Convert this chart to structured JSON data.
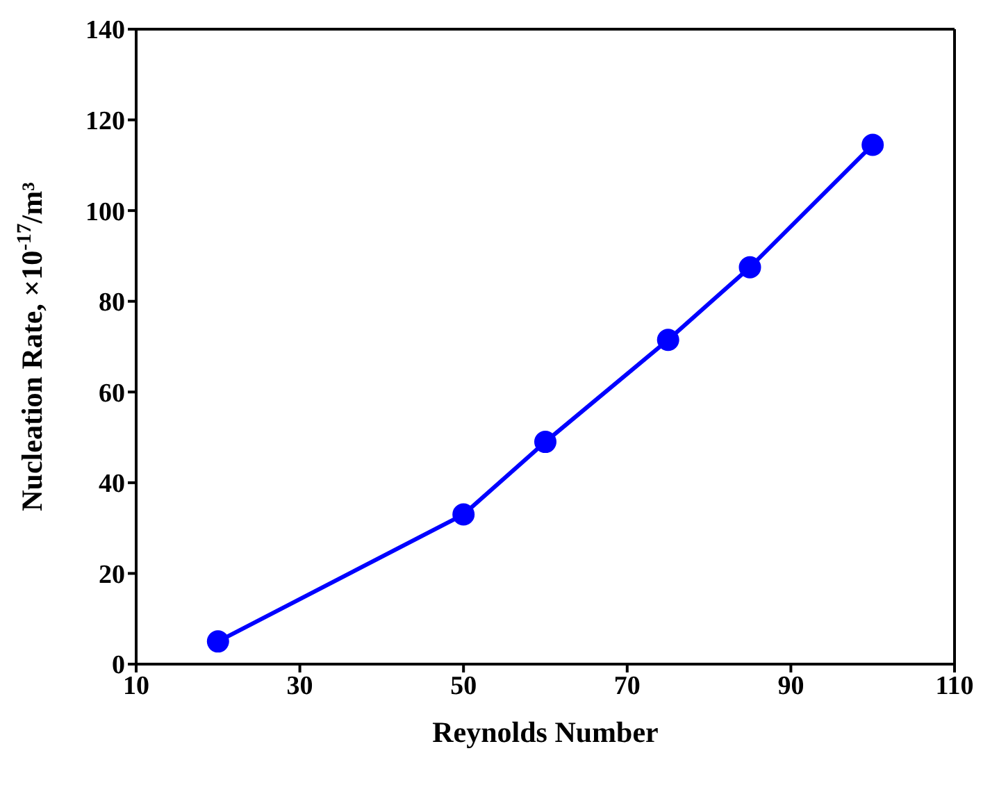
{
  "chart_data": {
    "type": "line",
    "xlabel": "Reynolds Number",
    "ylabel": "Nucleation Rate, ×10$^{-17}$/m³",
    "x": [
      20,
      50,
      60,
      75,
      85,
      100
    ],
    "series": [
      {
        "color": "#0000ff",
        "values": [
          5,
          33,
          49,
          71.5,
          87.5,
          114.5
        ]
      }
    ],
    "xlim": [
      10,
      110
    ],
    "xticks": [
      10,
      30,
      50,
      70,
      90,
      110
    ],
    "ylim": [
      0,
      140
    ],
    "yticks": [
      0,
      20,
      40,
      60,
      80,
      100,
      120,
      140
    ],
    "grid": false,
    "legend": false,
    "marker": "circle",
    "line_style": "solid"
  }
}
